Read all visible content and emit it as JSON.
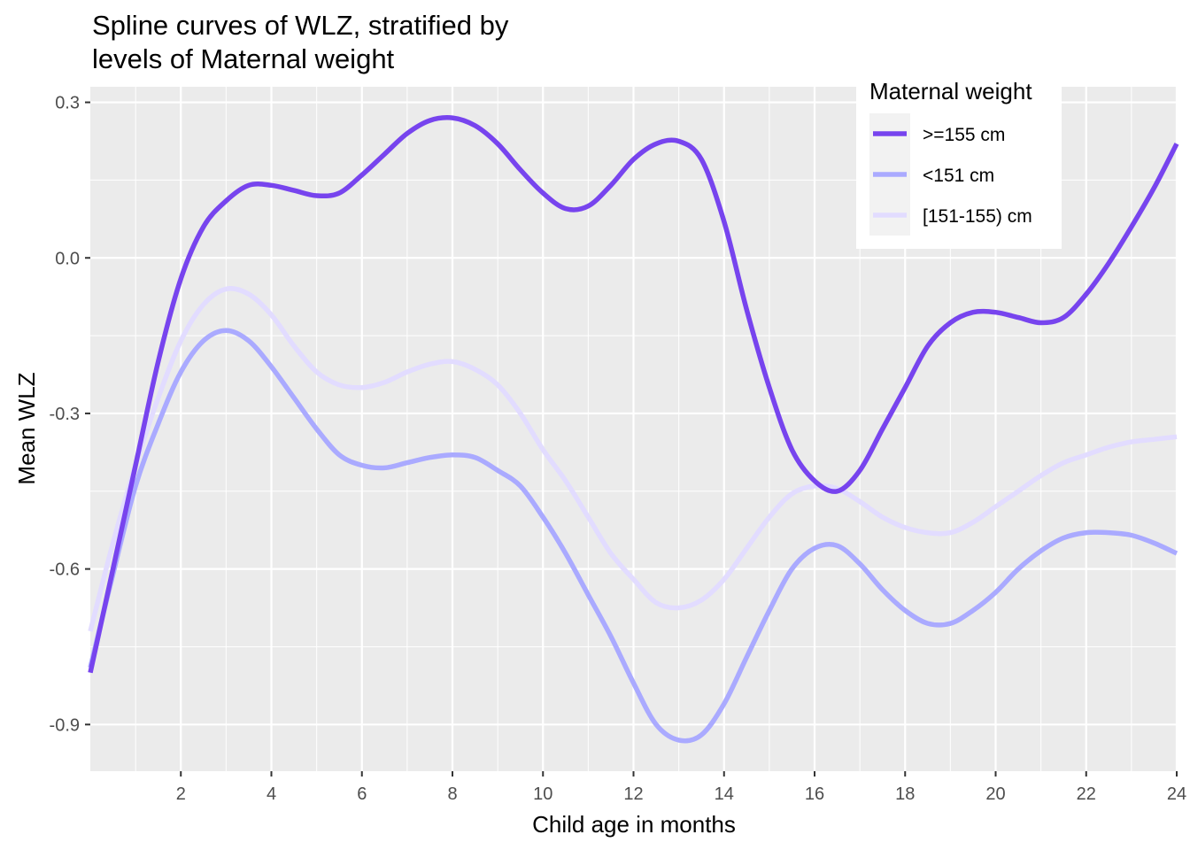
{
  "chart_data": {
    "type": "line",
    "title_lines": [
      "Spline curves of WLZ, stratified by",
      "levels of Maternal weight"
    ],
    "xlabel": "Child age in months",
    "ylabel": "Mean WLZ",
    "xlim": [
      0,
      24
    ],
    "ylim": [
      -0.99,
      0.33
    ],
    "x_ticks": [
      2,
      4,
      6,
      8,
      10,
      12,
      14,
      16,
      18,
      20,
      22,
      24
    ],
    "x_tick_labels": [
      "2",
      "4",
      "6",
      "8",
      "10",
      "12",
      "14",
      "16",
      "18",
      "20",
      "22",
      "24"
    ],
    "y_ticks": [
      -0.9,
      -0.6,
      -0.3,
      0.0,
      0.3
    ],
    "y_tick_labels": [
      "-0.9",
      "-0.6",
      "-0.3",
      "0.0",
      "0.3"
    ],
    "grid": true,
    "legend": {
      "title": "Maternal weight",
      "position": "top-right"
    },
    "series": [
      {
        "name": ">=155 cm",
        "color": "#7744ee",
        "points": [
          [
            0,
            -0.8
          ],
          [
            0.5,
            -0.6
          ],
          [
            1,
            -0.4
          ],
          [
            1.5,
            -0.2
          ],
          [
            2,
            -0.04
          ],
          [
            2.5,
            0.06
          ],
          [
            3,
            0.11
          ],
          [
            3.5,
            0.14
          ],
          [
            4,
            0.14
          ],
          [
            4.5,
            0.13
          ],
          [
            5,
            0.12
          ],
          [
            5.5,
            0.125
          ],
          [
            6,
            0.16
          ],
          [
            6.5,
            0.2
          ],
          [
            7,
            0.24
          ],
          [
            7.5,
            0.265
          ],
          [
            8,
            0.27
          ],
          [
            8.5,
            0.255
          ],
          [
            9,
            0.22
          ],
          [
            9.5,
            0.17
          ],
          [
            10,
            0.125
          ],
          [
            10.5,
            0.095
          ],
          [
            11,
            0.1
          ],
          [
            11.5,
            0.14
          ],
          [
            12,
            0.19
          ],
          [
            12.5,
            0.22
          ],
          [
            13,
            0.225
          ],
          [
            13.5,
            0.19
          ],
          [
            14,
            0.07
          ],
          [
            14.5,
            -0.1
          ],
          [
            15,
            -0.25
          ],
          [
            15.5,
            -0.37
          ],
          [
            16,
            -0.43
          ],
          [
            16.5,
            -0.45
          ],
          [
            17,
            -0.41
          ],
          [
            17.5,
            -0.33
          ],
          [
            18,
            -0.25
          ],
          [
            18.5,
            -0.17
          ],
          [
            19,
            -0.125
          ],
          [
            19.5,
            -0.105
          ],
          [
            20,
            -0.105
          ],
          [
            20.5,
            -0.115
          ],
          [
            21,
            -0.125
          ],
          [
            21.5,
            -0.115
          ],
          [
            22,
            -0.07
          ],
          [
            22.5,
            -0.01
          ],
          [
            23,
            0.06
          ],
          [
            23.5,
            0.135
          ],
          [
            24,
            0.22
          ]
        ]
      },
      {
        "name": "<151 cm",
        "color": "#aaaaff",
        "points": [
          [
            0,
            -0.79
          ],
          [
            0.5,
            -0.61
          ],
          [
            1,
            -0.44
          ],
          [
            1.5,
            -0.32
          ],
          [
            2,
            -0.22
          ],
          [
            2.5,
            -0.16
          ],
          [
            3,
            -0.14
          ],
          [
            3.5,
            -0.16
          ],
          [
            4,
            -0.21
          ],
          [
            4.5,
            -0.27
          ],
          [
            5,
            -0.33
          ],
          [
            5.5,
            -0.38
          ],
          [
            6,
            -0.4
          ],
          [
            6.5,
            -0.405
          ],
          [
            7,
            -0.395
          ],
          [
            7.5,
            -0.385
          ],
          [
            8,
            -0.38
          ],
          [
            8.5,
            -0.385
          ],
          [
            9,
            -0.41
          ],
          [
            9.5,
            -0.44
          ],
          [
            10,
            -0.5
          ],
          [
            10.5,
            -0.57
          ],
          [
            11,
            -0.65
          ],
          [
            11.5,
            -0.73
          ],
          [
            12,
            -0.82
          ],
          [
            12.5,
            -0.9
          ],
          [
            13,
            -0.93
          ],
          [
            13.5,
            -0.92
          ],
          [
            14,
            -0.86
          ],
          [
            14.5,
            -0.77
          ],
          [
            15,
            -0.68
          ],
          [
            15.5,
            -0.6
          ],
          [
            16,
            -0.56
          ],
          [
            16.5,
            -0.555
          ],
          [
            17,
            -0.59
          ],
          [
            17.5,
            -0.64
          ],
          [
            18,
            -0.68
          ],
          [
            18.5,
            -0.705
          ],
          [
            19,
            -0.705
          ],
          [
            19.5,
            -0.68
          ],
          [
            20,
            -0.645
          ],
          [
            20.5,
            -0.6
          ],
          [
            21,
            -0.565
          ],
          [
            21.5,
            -0.54
          ],
          [
            22,
            -0.53
          ],
          [
            22.5,
            -0.53
          ],
          [
            23,
            -0.535
          ],
          [
            23.5,
            -0.55
          ],
          [
            24,
            -0.57
          ]
        ]
      },
      {
        "name": "[151-155) cm",
        "color": "#e2dcff",
        "points": [
          [
            0,
            -0.72
          ],
          [
            0.5,
            -0.55
          ],
          [
            1,
            -0.4
          ],
          [
            1.5,
            -0.27
          ],
          [
            2,
            -0.16
          ],
          [
            2.5,
            -0.09
          ],
          [
            3,
            -0.06
          ],
          [
            3.5,
            -0.07
          ],
          [
            4,
            -0.11
          ],
          [
            4.5,
            -0.17
          ],
          [
            5,
            -0.22
          ],
          [
            5.5,
            -0.245
          ],
          [
            6,
            -0.25
          ],
          [
            6.5,
            -0.24
          ],
          [
            7,
            -0.22
          ],
          [
            7.5,
            -0.205
          ],
          [
            8,
            -0.2
          ],
          [
            8.5,
            -0.215
          ],
          [
            9,
            -0.245
          ],
          [
            9.5,
            -0.3
          ],
          [
            10,
            -0.37
          ],
          [
            10.5,
            -0.43
          ],
          [
            11,
            -0.5
          ],
          [
            11.5,
            -0.57
          ],
          [
            12,
            -0.62
          ],
          [
            12.5,
            -0.665
          ],
          [
            13,
            -0.675
          ],
          [
            13.5,
            -0.66
          ],
          [
            14,
            -0.62
          ],
          [
            14.5,
            -0.56
          ],
          [
            15,
            -0.5
          ],
          [
            15.5,
            -0.455
          ],
          [
            16,
            -0.44
          ],
          [
            16.5,
            -0.445
          ],
          [
            17,
            -0.47
          ],
          [
            17.5,
            -0.5
          ],
          [
            18,
            -0.52
          ],
          [
            18.5,
            -0.53
          ],
          [
            19,
            -0.53
          ],
          [
            19.5,
            -0.51
          ],
          [
            20,
            -0.48
          ],
          [
            20.5,
            -0.45
          ],
          [
            21,
            -0.42
          ],
          [
            21.5,
            -0.395
          ],
          [
            22,
            -0.38
          ],
          [
            22.5,
            -0.365
          ],
          [
            23,
            -0.355
          ],
          [
            23.5,
            -0.35
          ],
          [
            24,
            -0.345
          ]
        ]
      }
    ]
  }
}
